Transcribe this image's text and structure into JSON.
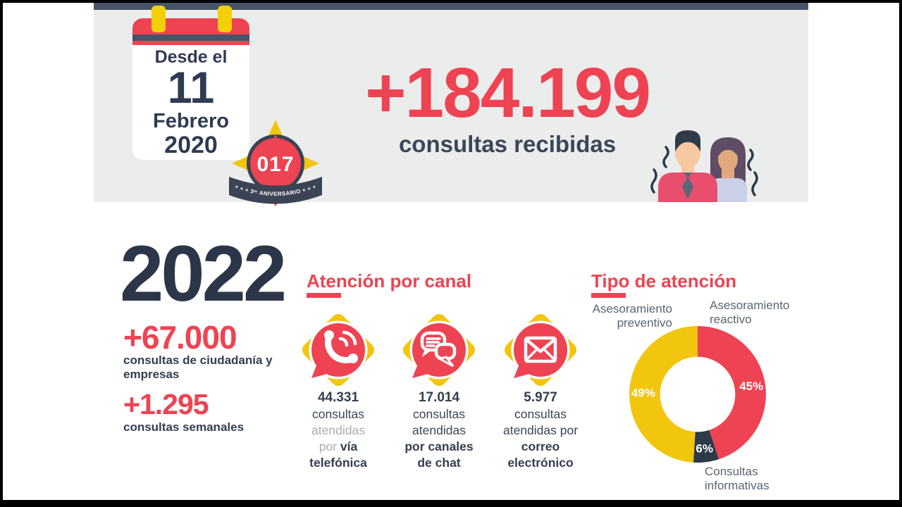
{
  "colors": {
    "red": "#EE4352",
    "navy": "#2B3648",
    "slate_bar": "#475468",
    "banner_bg": "#EBECEC",
    "yellow": "#F2C50F",
    "label_gray": "#5A6572",
    "faded_text": "#A7ADB5",
    "dark_slice": "#2E3A48"
  },
  "hero": {
    "calendar": {
      "intro": "Desde el",
      "day": "11",
      "month": "Febrero",
      "year": "2020"
    },
    "badge": {
      "number": "017",
      "ribbon": "+ + + 3ᵉʳ ANIVERSARIO + + +"
    },
    "headline": "+184.199",
    "subheadline": "consultas recibidas"
  },
  "stats": {
    "year": "2022",
    "items": [
      {
        "value": "+67.000",
        "label": "consultas de ciudadanía y empresas"
      },
      {
        "value": "+1.295",
        "label": "consultas semanales"
      }
    ]
  },
  "channels": {
    "title": "Atención por canal",
    "items": [
      {
        "icon": "phone-icon",
        "value": "44.331",
        "lines": [
          [
            {
              "t": "consultas",
              "s": "reg"
            }
          ],
          [
            {
              "t": "atendidas",
              "s": "faded"
            }
          ],
          [
            {
              "t": "por ",
              "s": "faded"
            },
            {
              "t": "vía",
              "s": "bold"
            }
          ],
          [
            {
              "t": "telefónica",
              "s": "bold"
            }
          ]
        ]
      },
      {
        "icon": "chat-icon",
        "value": "17.014",
        "lines": [
          [
            {
              "t": "consultas",
              "s": "reg"
            }
          ],
          [
            {
              "t": "atendidas",
              "s": "reg"
            }
          ],
          [
            {
              "t": "por canales",
              "s": "bold"
            }
          ],
          [
            {
              "t": "de chat",
              "s": "bold"
            }
          ]
        ]
      },
      {
        "icon": "mail-icon",
        "value": "5.977",
        "lines": [
          [
            {
              "t": "consultas",
              "s": "reg"
            }
          ],
          [
            {
              "t": "atendidas por",
              "s": "reg"
            }
          ],
          [
            {
              "t": "correo",
              "s": "bold"
            }
          ],
          [
            {
              "t": "electrónico",
              "s": "bold"
            }
          ]
        ]
      }
    ]
  },
  "attention": {
    "title": "Tipo de atención",
    "preventive_label": "Asesoramiento preventivo",
    "reactive_label": "Asesoramiento reactivo",
    "informative_label": "Consultas informativas"
  },
  "chart_data": {
    "type": "pie",
    "title": "Tipo de atención",
    "donut": true,
    "inner_radius_ratio": 0.55,
    "start_angle_deg": 0,
    "direction": "clockwise",
    "slices": [
      {
        "label": "Asesoramiento reactivo",
        "value": 45,
        "display": "45%",
        "color": "#EE4352"
      },
      {
        "label": "Consultas informativas",
        "value": 6,
        "display": "6%",
        "color": "#2E3A48"
      },
      {
        "label": "Asesoramiento preventivo",
        "value": 49,
        "display": "49%",
        "color": "#F2C50F"
      }
    ]
  }
}
